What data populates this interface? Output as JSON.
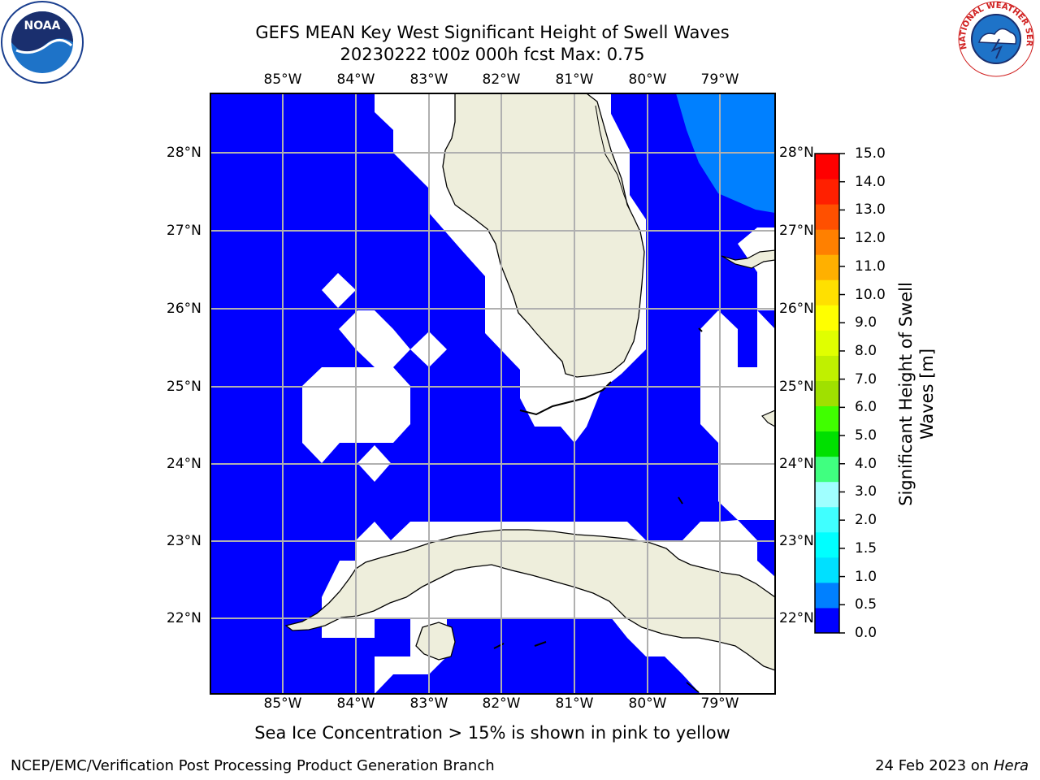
{
  "title_line1": "GEFS MEAN Key West Significant Height of Swell Waves",
  "title_line2": "20230222 t00z 000h fcst   Max: 0.75",
  "map": {
    "lon_labels": [
      "85°W",
      "84°W",
      "83°W",
      "82°W",
      "81°W",
      "80°W",
      "79°W"
    ],
    "lat_labels": [
      "28°N",
      "27°N",
      "26°N",
      "25°N",
      "24°N",
      "23°N",
      "22°N"
    ],
    "ocean_color_0_0p5": "#0000ff",
    "ocean_color_0p5_1": "#0080ff",
    "land_color": "#eeeedc"
  },
  "colorbar": {
    "title_line1": "Significant Height of Swell",
    "title_line2": "Waves [m]",
    "ticks": [
      "15.0",
      "14.0",
      "13.0",
      "12.0",
      "11.0",
      "10.0",
      "9.0",
      "8.0",
      "7.0",
      "6.0",
      "5.0",
      "4.0",
      "3.0",
      "2.0",
      "1.5",
      "1.0",
      "0.5",
      "0.0"
    ],
    "colors": [
      "#0000ff",
      "#0080ff",
      "#00e0ff",
      "#00ffff",
      "#40ffff",
      "#a0ffff",
      "#40ff80",
      "#00e000",
      "#40ff00",
      "#a0e000",
      "#c0f000",
      "#e0ff00",
      "#ffff00",
      "#ffe000",
      "#ffb000",
      "#ff8000",
      "#ff5000",
      "#ff2000",
      "#ff0000"
    ]
  },
  "note": "Sea Ice Concentration > 15% is shown in pink to yellow",
  "footer": {
    "left": "NCEP/EMC/Verification Post Processing Product Generation Branch",
    "right_prefix": "24 Feb 2023 on ",
    "right_host": "Hera"
  },
  "logos": {
    "noaa": "NOAA",
    "nws": "NATIONAL WEATHER SERVICE"
  }
}
